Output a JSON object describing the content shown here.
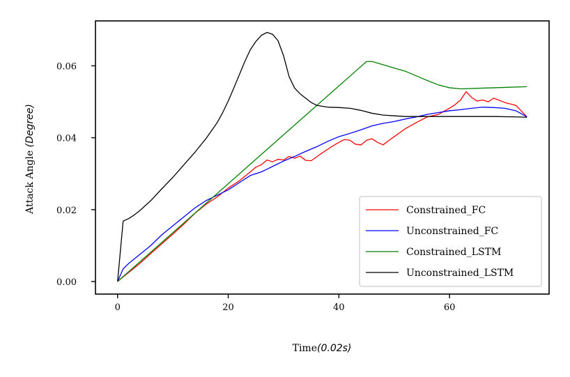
{
  "chart_data": {
    "type": "line",
    "xlabel_text": "Time",
    "xlabel_unit": "(0.02s)",
    "ylabel_text": "Attack Angle ",
    "ylabel_unit": "(Degree)",
    "xlim": [
      -4,
      78
    ],
    "ylim": [
      -0.0035,
      0.0725
    ],
    "xticks": [
      0,
      20,
      40,
      60
    ],
    "xtick_labels": [
      "0",
      "20",
      "40",
      "60"
    ],
    "yticks": [
      0.0,
      0.02,
      0.04,
      0.06
    ],
    "ytick_labels": [
      "0.00",
      "0.02",
      "0.04",
      "0.06"
    ],
    "legend_position": "lower-right",
    "series": [
      {
        "name": "Constrained_FC",
        "color": "#ff0000",
        "x": [
          0,
          2,
          4,
          6,
          8,
          10,
          12,
          14,
          16,
          18,
          20,
          22,
          24,
          25,
          26,
          27,
          28,
          29,
          30,
          31,
          32,
          33,
          34,
          35,
          36,
          37,
          38,
          39,
          40,
          41,
          42,
          43,
          44,
          45,
          46,
          47,
          48,
          49,
          50,
          52,
          54,
          56,
          58,
          60,
          61,
          62,
          63,
          64,
          65,
          66,
          67,
          68,
          70,
          72,
          74
        ],
        "y": [
          0.0,
          0.0025,
          0.005,
          0.0078,
          0.0105,
          0.0132,
          0.016,
          0.019,
          0.0215,
          0.0235,
          0.026,
          0.028,
          0.0305,
          0.0318,
          0.0325,
          0.0338,
          0.0333,
          0.034,
          0.0338,
          0.0348,
          0.0343,
          0.0349,
          0.0337,
          0.0336,
          0.0347,
          0.0358,
          0.0368,
          0.0378,
          0.0387,
          0.0395,
          0.0393,
          0.0382,
          0.038,
          0.0393,
          0.0397,
          0.0387,
          0.038,
          0.0392,
          0.0403,
          0.0425,
          0.0442,
          0.0458,
          0.0465,
          0.0482,
          0.0492,
          0.0505,
          0.0528,
          0.0512,
          0.0502,
          0.0505,
          0.05,
          0.051,
          0.0498,
          0.049,
          0.0458
        ]
      },
      {
        "name": "Unconstrained_FC",
        "color": "#0000ff",
        "x": [
          0,
          1,
          2,
          4,
          6,
          8,
          10,
          12,
          14,
          16,
          18,
          20,
          22,
          24,
          26,
          28,
          30,
          32,
          34,
          36,
          38,
          40,
          42,
          44,
          46,
          48,
          50,
          52,
          54,
          56,
          58,
          60,
          62,
          64,
          66,
          68,
          70,
          72,
          74
        ],
        "y": [
          0.0,
          0.0035,
          0.005,
          0.0075,
          0.01,
          0.013,
          0.0155,
          0.018,
          0.0205,
          0.0225,
          0.024,
          0.0255,
          0.0275,
          0.0295,
          0.0305,
          0.032,
          0.0335,
          0.0348,
          0.0362,
          0.0375,
          0.039,
          0.0403,
          0.0412,
          0.0422,
          0.0433,
          0.044,
          0.0445,
          0.0452,
          0.0458,
          0.0465,
          0.047,
          0.0475,
          0.0478,
          0.0482,
          0.0485,
          0.0484,
          0.0482,
          0.0475,
          0.0458
        ]
      },
      {
        "name": "Constrained_LSTM",
        "color": "#008000",
        "x": [
          0,
          45,
          46,
          48,
          50,
          52,
          54,
          56,
          58,
          60,
          62,
          66,
          70,
          74
        ],
        "y": [
          0.0,
          0.0612,
          0.0612,
          0.0603,
          0.0594,
          0.0585,
          0.0572,
          0.0559,
          0.0547,
          0.0539,
          0.0536,
          0.0538,
          0.054,
          0.0542
        ],
        "ylabel_note": ""
      },
      {
        "name": "Unconstrained_LSTM",
        "color": "#000000",
        "x": [
          0,
          1,
          2,
          3,
          4,
          6,
          8,
          10,
          12,
          14,
          16,
          18,
          19,
          20,
          21,
          22,
          23,
          24,
          25,
          26,
          27,
          28,
          29,
          30,
          31,
          32,
          33,
          34,
          35,
          36,
          38,
          40,
          42,
          44,
          46,
          48,
          50,
          52,
          54,
          56,
          60,
          64,
          68,
          72,
          74
        ],
        "y": [
          0.0,
          0.0168,
          0.0175,
          0.0185,
          0.0197,
          0.0225,
          0.0258,
          0.029,
          0.0325,
          0.036,
          0.0398,
          0.0442,
          0.047,
          0.0502,
          0.0538,
          0.0575,
          0.0612,
          0.0645,
          0.0668,
          0.0685,
          0.0693,
          0.0688,
          0.067,
          0.0628,
          0.057,
          0.0538,
          0.0522,
          0.051,
          0.0498,
          0.049,
          0.0485,
          0.0484,
          0.0482,
          0.0476,
          0.0468,
          0.0463,
          0.0461,
          0.0459,
          0.0459,
          0.0459,
          0.0459,
          0.0459,
          0.0459,
          0.0458,
          0.0457
        ]
      }
    ]
  }
}
